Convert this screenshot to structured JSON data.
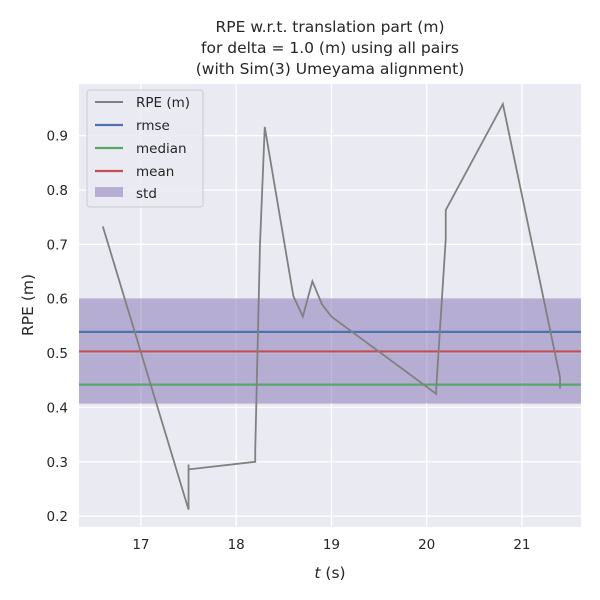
{
  "chart_data": {
    "type": "line",
    "title_lines": [
      "RPE w.r.t. translation part (m)",
      "for delta = 1.0 (m) using all pairs",
      "(with Sim(3) Umeyama alignment)"
    ],
    "xlabel_italic": "t",
    "xlabel_rest": " (s)",
    "ylabel": "RPE (m)",
    "xlim": [
      16.35,
      21.62
    ],
    "ylim": [
      0.18,
      0.995
    ],
    "x_ticks": [
      17,
      18,
      19,
      20,
      21
    ],
    "y_ticks": [
      0.2,
      0.3,
      0.4,
      0.5,
      0.6,
      0.7,
      0.8,
      0.9
    ],
    "grid": true,
    "legend_position": "top-left",
    "series": [
      {
        "name": "RPE (m)",
        "color": "#808080",
        "x": [
          16.6,
          17.5,
          17.5,
          17.5,
          17.5,
          17.5,
          18.2,
          18.2,
          18.25,
          18.3,
          18.6,
          18.7,
          18.8,
          18.9,
          19.0,
          20.1,
          20.1,
          20.2,
          20.2,
          20.8,
          21.4,
          21.4
        ],
        "y": [
          0.733,
          0.212,
          0.295,
          0.245,
          0.286,
          0.286,
          0.3,
          0.32,
          0.7,
          0.916,
          0.605,
          0.567,
          0.632,
          0.59,
          0.567,
          0.425,
          0.435,
          0.71,
          0.763,
          0.958,
          0.455,
          0.435
        ]
      }
    ],
    "stats": {
      "rmse": {
        "name": "rmse",
        "value": 0.539,
        "color": "#4c72b0"
      },
      "median": {
        "name": "median",
        "value": 0.442,
        "color": "#55a868"
      },
      "mean": {
        "name": "mean",
        "value": 0.503,
        "color": "#c44e52"
      },
      "std": {
        "name": "std",
        "lower": 0.407,
        "upper": 0.601,
        "color": "#8172b2"
      }
    },
    "colors": {
      "plot_background": "#eaeaf2",
      "grid": "#ffffff"
    }
  }
}
